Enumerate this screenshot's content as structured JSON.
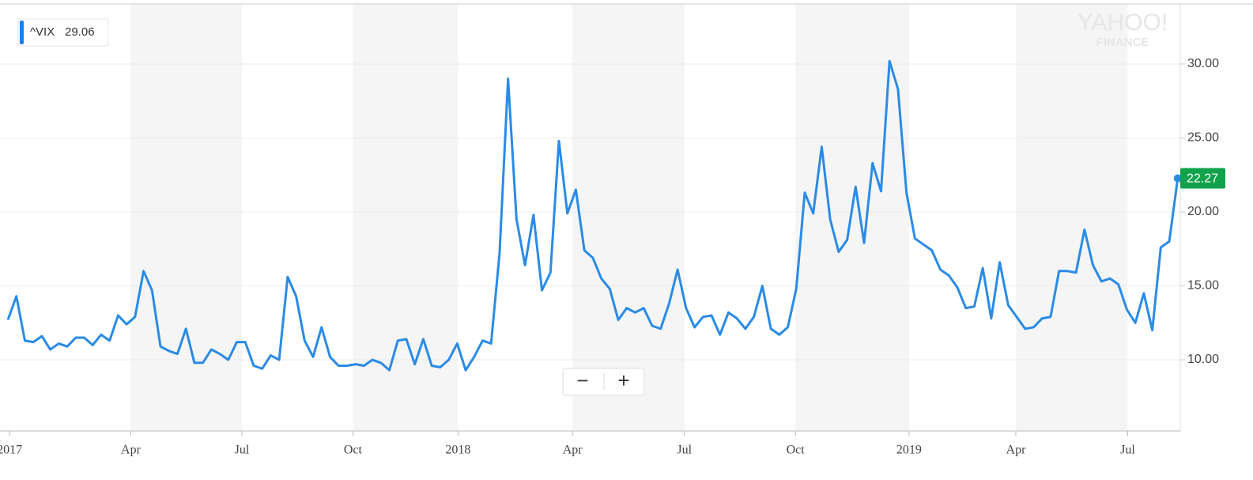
{
  "chart_data": {
    "type": "line",
    "legend": {
      "symbol_label": "^VIX",
      "value_label": "29.06"
    },
    "watermark": {
      "top": "YAHOO!",
      "bottom": "FINANCE"
    },
    "zoom_controls": {
      "minus": "−",
      "plus": "+"
    },
    "series": [
      {
        "name": "^VIX",
        "color": "#2a8be6",
        "last_label_color": "#12a24b",
        "values": [
          12.7,
          14.3,
          11.3,
          11.2,
          11.6,
          10.7,
          11.1,
          10.9,
          11.5,
          11.5,
          11.0,
          11.7,
          11.3,
          13.0,
          12.4,
          12.9,
          16.0,
          14.7,
          10.9,
          10.6,
          10.4,
          12.1,
          9.8,
          9.8,
          10.7,
          10.4,
          10.0,
          11.2,
          11.2,
          9.6,
          9.4,
          10.3,
          10.0,
          15.6,
          14.3,
          11.3,
          10.2,
          12.2,
          10.2,
          9.6,
          9.6,
          9.7,
          9.6,
          10.0,
          9.8,
          9.3,
          11.3,
          11.4,
          9.7,
          11.4,
          9.6,
          9.5,
          10.0,
          11.1,
          9.3,
          10.2,
          11.3,
          11.1,
          17.2,
          29.0,
          19.5,
          16.4,
          19.8,
          14.7,
          15.9,
          24.8,
          19.9,
          21.5,
          17.4,
          16.9,
          15.5,
          14.8,
          12.7,
          13.5,
          13.2,
          13.5,
          12.3,
          12.1,
          13.8,
          16.1,
          13.5,
          12.2,
          12.9,
          13.0,
          11.7,
          13.2,
          12.8,
          12.1,
          12.9,
          15.0,
          12.1,
          11.7,
          12.2,
          14.8,
          21.3,
          19.9,
          24.4,
          19.5,
          17.3,
          18.1,
          21.7,
          17.9,
          23.3,
          21.4,
          30.2,
          28.3,
          21.3,
          18.2,
          17.8,
          17.4,
          16.1,
          15.7,
          14.9,
          13.5,
          13.6,
          16.2,
          12.8,
          16.6,
          13.7,
          12.9,
          12.1,
          12.2,
          12.8,
          12.9,
          16.0,
          16.0,
          15.9,
          18.8,
          16.4,
          15.3,
          15.5,
          15.1,
          13.4,
          12.5,
          14.5,
          12.0,
          17.6,
          18.0,
          22.27
        ]
      }
    ],
    "xlim": [
      0,
      138.3
    ],
    "xticks": [
      {
        "value": 0.2,
        "label": "2017"
      },
      {
        "value": 14.5,
        "label": "Apr"
      },
      {
        "value": 27.6,
        "label": "Jul"
      },
      {
        "value": 40.7,
        "label": "Oct"
      },
      {
        "value": 53.1,
        "label": "2018"
      },
      {
        "value": 66.6,
        "label": "Apr"
      },
      {
        "value": 79.8,
        "label": "Jul"
      },
      {
        "value": 92.9,
        "label": "Oct"
      },
      {
        "value": 106.3,
        "label": "2019"
      },
      {
        "value": 118.9,
        "label": "Apr"
      },
      {
        "value": 132.1,
        "label": "Jul"
      }
    ],
    "ylim": [
      5.19,
      34.06
    ],
    "yticks": [
      {
        "value": 10,
        "label": "10.00"
      },
      {
        "value": 15,
        "label": "15.00"
      },
      {
        "value": 20,
        "label": "20.00"
      },
      {
        "value": 25,
        "label": "25.00"
      },
      {
        "value": 30,
        "label": "30.00"
      }
    ],
    "grid": true
  }
}
